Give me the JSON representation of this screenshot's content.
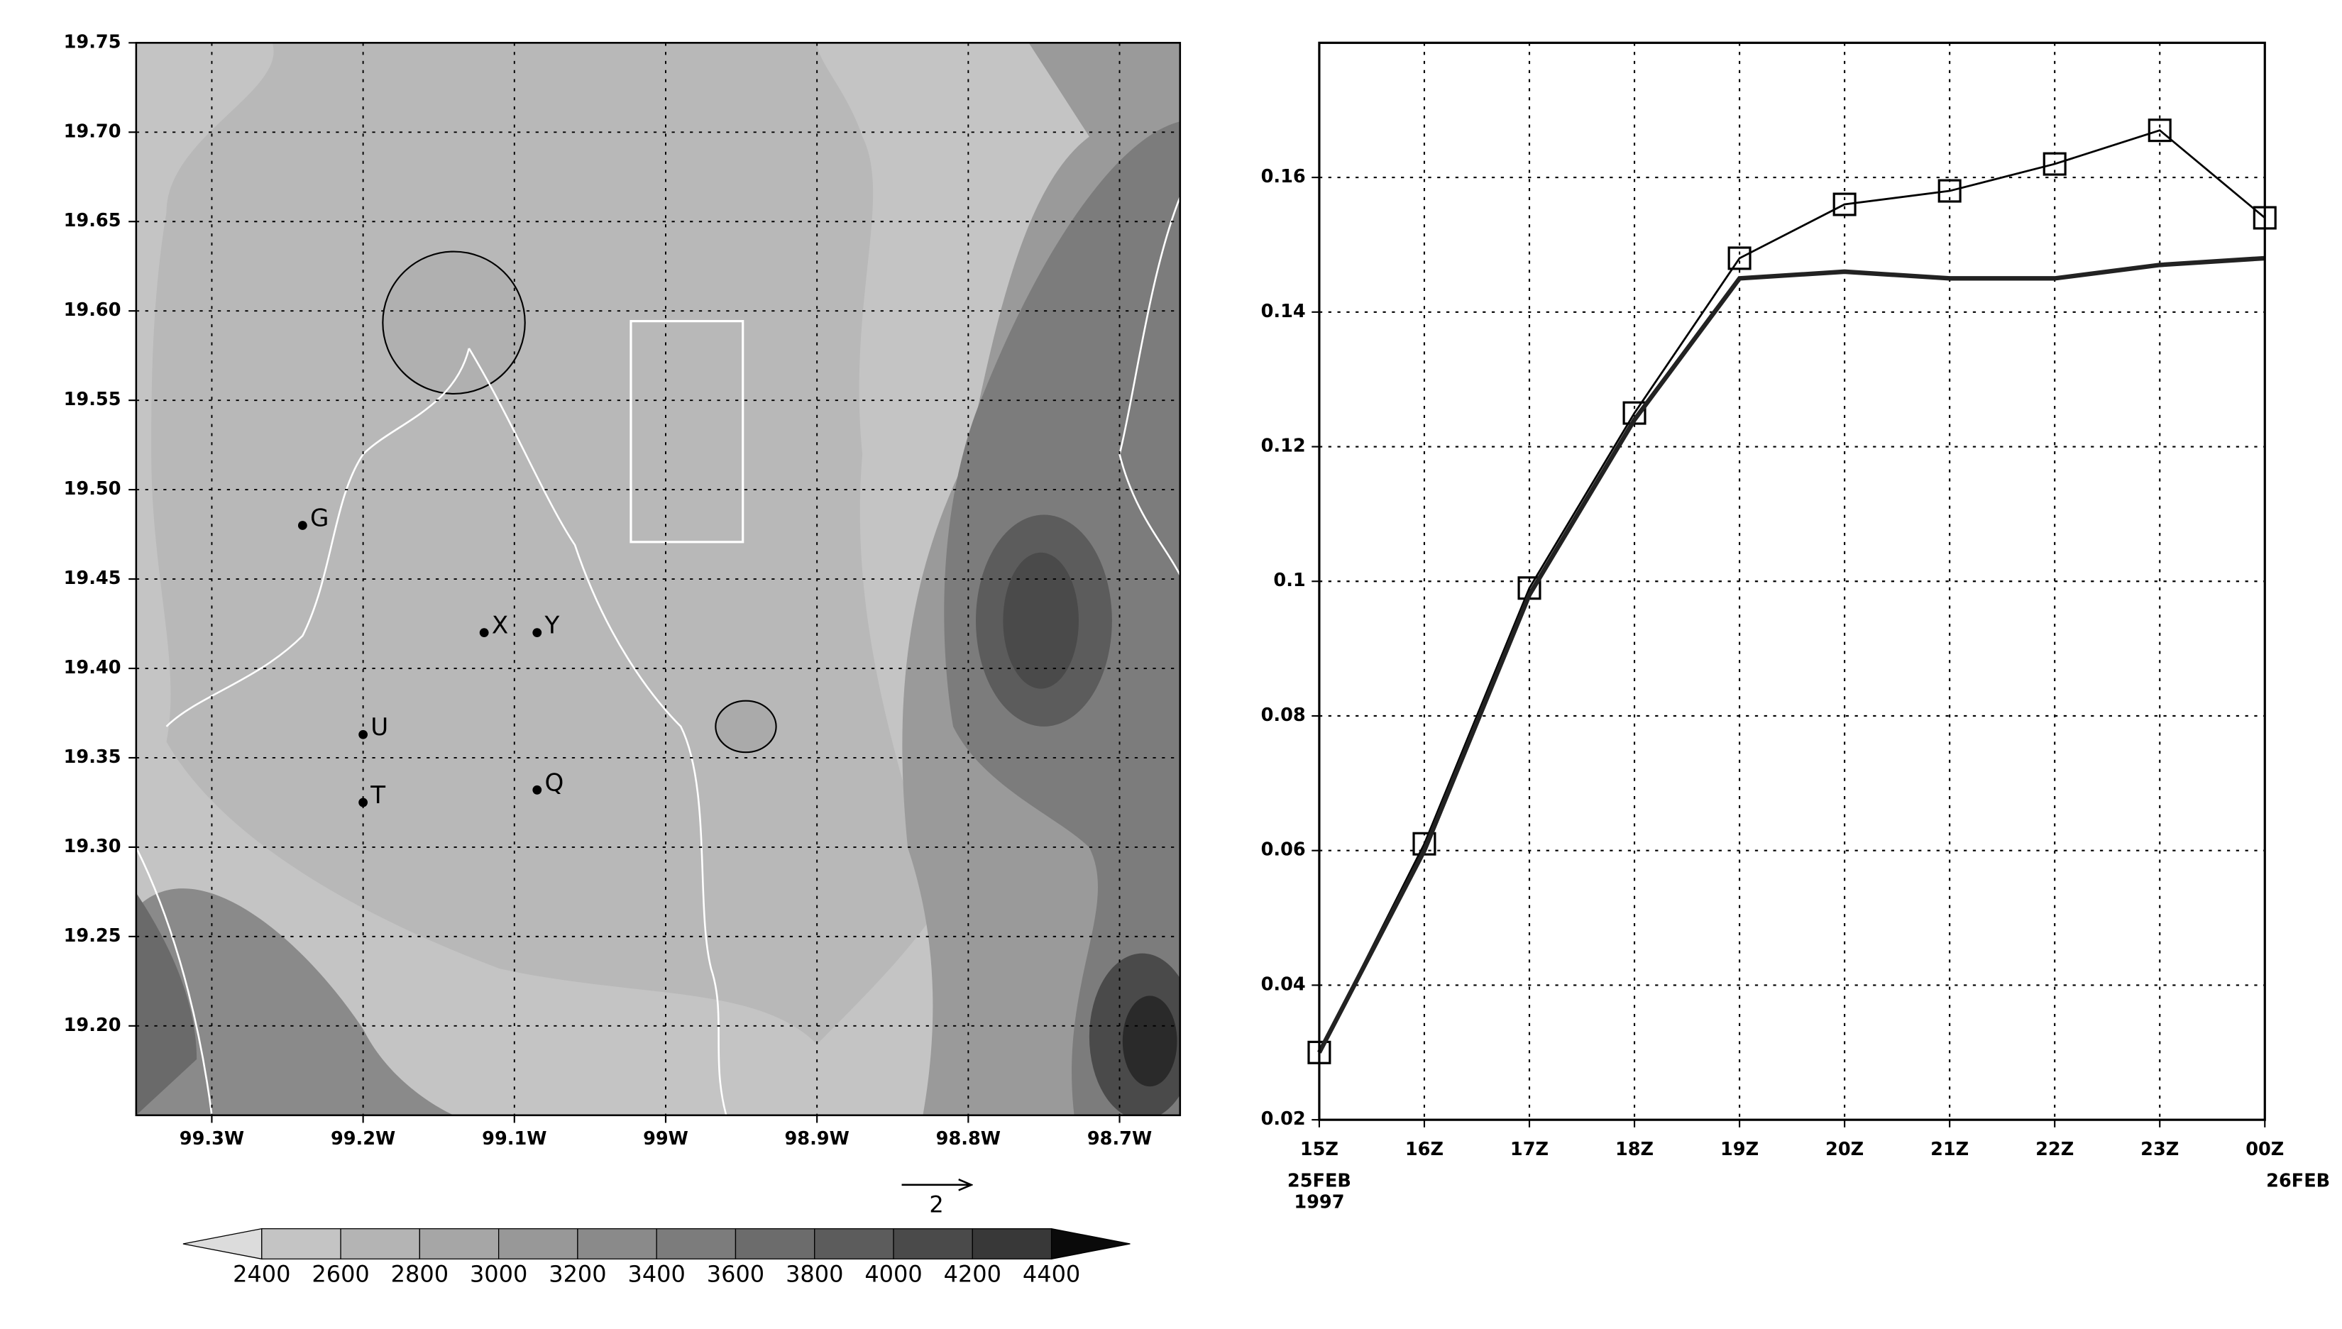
{
  "chart_data": [
    {
      "type": "map",
      "xlim": [
        -99.35,
        -98.66
      ],
      "ylim": [
        19.15,
        19.75
      ],
      "xticks": [
        {
          "value": -99.3,
          "label": "99.3W"
        },
        {
          "value": -99.2,
          "label": "99.2W"
        },
        {
          "value": -99.1,
          "label": "99.1W"
        },
        {
          "value": -99,
          "label": "99W"
        },
        {
          "value": -98.9,
          "label": "98.9W"
        },
        {
          "value": -98.8,
          "label": "98.8W"
        },
        {
          "value": -98.7,
          "label": "98.7W"
        }
      ],
      "yticks": [
        {
          "value": 19.2,
          "label": "19.20"
        },
        19.25,
        {
          "value": 19.3,
          "label": "19.30"
        },
        19.35,
        {
          "value": 19.4,
          "label": "19.40"
        },
        19.45,
        {
          "value": 19.5,
          "label": "19.50"
        },
        19.55,
        {
          "value": 19.6,
          "label": "19.60"
        },
        19.65,
        {
          "value": 19.7,
          "label": "19.70"
        },
        19.75
      ],
      "grid": true,
      "sites": [
        {
          "label": "G",
          "x": -99.24,
          "y": 19.48
        },
        {
          "label": "X",
          "x": -99.12,
          "y": 19.42
        },
        {
          "label": "Y",
          "x": -99.085,
          "y": 19.42
        },
        {
          "label": "U",
          "x": -99.2,
          "y": 19.363
        },
        {
          "label": "T",
          "x": -99.2,
          "y": 19.325
        },
        {
          "label": "Q",
          "x": -99.085,
          "y": 19.332
        }
      ],
      "vector_key": 2,
      "colorbar_levels": [
        2400,
        2600,
        2800,
        3000,
        3200,
        3400,
        3600,
        3800,
        4000,
        4200,
        4400
      ],
      "colorbar_colors": [
        "#dcdcdc",
        "#c4c4c4",
        "#b4b4b4",
        "#a6a6a6",
        "#989898",
        "#8a8a8a",
        "#7c7c7c",
        "#6c6c6c",
        "#5c5c5c",
        "#4a4a4a",
        "#383838",
        "#0a0a0a"
      ]
    },
    {
      "type": "line",
      "categories": [
        "15Z",
        "16Z",
        "17Z",
        "18Z",
        "19Z",
        "20Z",
        "21Z",
        "22Z",
        "23Z",
        "00Z"
      ],
      "date_labels": [
        "25FEB",
        null,
        null,
        null,
        null,
        null,
        null,
        null,
        null,
        "26FEB"
      ],
      "year_labels": [
        "1997",
        null,
        null,
        null,
        null,
        null,
        null,
        null,
        null,
        null
      ],
      "ylim": [
        0.02,
        0.18
      ],
      "yticks": [
        0.02,
        0.04,
        0.06,
        0.08,
        0.1,
        0.12,
        0.14,
        0.16
      ],
      "grid": true,
      "series": [
        {
          "color": "#000000",
          "marker": "square",
          "values": [
            0.03,
            0.061,
            0.099,
            0.125,
            0.148,
            0.156,
            0.158,
            0.162,
            0.167,
            0.154
          ]
        },
        {
          "color": "#222222",
          "values": [
            0.03,
            0.06,
            0.098,
            0.124,
            0.145,
            0.146,
            0.145,
            0.145,
            0.147,
            0.148
          ]
        }
      ]
    }
  ]
}
